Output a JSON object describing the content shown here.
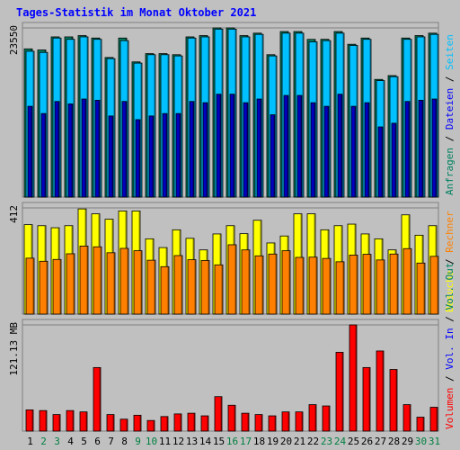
{
  "chart_data": {
    "type": "bar",
    "title": "Tages-Statistik im Monat Oktober 2021",
    "colors": {
      "anfragen": "#008060",
      "dateien": "#00c0ff",
      "seiten": "#0000c0",
      "besuche": "#ffff00",
      "rechner": "#ff8000",
      "volumen": "#ff0000",
      "weekday_label": "#000000",
      "weekend_label": "#008040"
    },
    "categories": [
      "1",
      "2",
      "3",
      "4",
      "5",
      "6",
      "7",
      "8",
      "9",
      "10",
      "11",
      "12",
      "13",
      "14",
      "15",
      "16",
      "17",
      "18",
      "19",
      "20",
      "21",
      "22",
      "23",
      "24",
      "25",
      "26",
      "27",
      "28",
      "29",
      "30",
      "31"
    ],
    "weekend_days": [
      "2",
      "3",
      "9",
      "10",
      "16",
      "17",
      "23",
      "24",
      "30",
      "31"
    ],
    "panels": [
      {
        "id": "requests",
        "ytick_label": "23550",
        "ymax": 23550,
        "legend": [
          {
            "text": "Anfragen",
            "color": "#008060"
          },
          {
            "text": "Dateien",
            "color": "#0000ff"
          },
          {
            "text": "Seiten",
            "color": "#00c0ff"
          }
        ],
        "series": [
          {
            "name": "Anfragen",
            "color": "#008060",
            "values": [
              20630,
              20480,
              22300,
              22300,
              22480,
              22140,
              19430,
              22140,
              18820,
              19970,
              19970,
              19820,
              22300,
              22480,
              23550,
              23550,
              22480,
              22820,
              19820,
              23040,
              23040,
              21950,
              21960,
              23040,
              21270,
              22140,
              16380,
              16910,
              22140,
              22480,
              22820
            ]
          },
          {
            "name": "Dateien",
            "color": "#00c0ff",
            "values": [
              20300,
              20140,
              22140,
              21960,
              22300,
              21960,
              19280,
              21780,
              18650,
              19820,
              19820,
              19650,
              22140,
              22300,
              23380,
              23380,
              22300,
              22650,
              19650,
              22820,
              22820,
              21610,
              21780,
              22820,
              21110,
              21960,
              16210,
              16760,
              21960,
              22300,
              22650
            ]
          },
          {
            "name": "Seiten",
            "color": "#0000c0",
            "values": [
              12640,
              11630,
              13310,
              12970,
              13650,
              13480,
              11290,
              13310,
              10780,
              11290,
              11630,
              11630,
              13310,
              13140,
              14320,
              14320,
              13140,
              13650,
              11460,
              14150,
              14150,
              13140,
              12640,
              14320,
              12640,
              13140,
              9770,
              10280,
              13310,
              13480,
              13650
            ]
          }
        ]
      },
      {
        "id": "visits",
        "ytick_label": "412",
        "ymax": 412,
        "legend": [
          {
            "text": "Besuche",
            "color": "#ffff00"
          },
          {
            "text": "Rechner",
            "color": "#ff8000"
          }
        ],
        "series": [
          {
            "name": "Besuche",
            "color": "#ffff00",
            "values": [
              347,
              343,
              335,
              343,
              408,
              389,
              368,
              400,
              400,
              292,
              258,
              327,
              294,
              249,
              311,
              343,
              312,
              364,
              276,
              303,
              389,
              389,
              327,
              343,
              349,
              311,
              292,
              249,
              385,
              306,
              343
            ]
          },
          {
            "name": "Rechner",
            "color": "#ff8000",
            "values": [
              217,
              205,
              212,
              234,
              264,
              261,
              238,
              255,
              246,
              209,
              184,
              227,
              211,
              208,
              191,
              269,
              249,
              226,
              233,
              246,
              220,
              221,
              216,
              203,
              229,
              232,
              210,
              233,
              254,
              198,
              224
            ]
          }
        ]
      },
      {
        "id": "volume",
        "ytick_label": "121.13 MB",
        "ymax": 121.13,
        "legend": [
          {
            "text": "Volumen",
            "color": "#ff0000"
          },
          {
            "text": "Vol. In",
            "color": "#0000ff"
          },
          {
            "text": "Vol. Out",
            "color": "#008060"
          }
        ],
        "series": [
          {
            "name": "Volumen",
            "color": "#ff0000",
            "values": [
              24.2,
              23.4,
              18.9,
              23.4,
              21.9,
              72.5,
              18.9,
              13.6,
              18.1,
              12.1,
              16.6,
              19.6,
              20.4,
              17.4,
              39.3,
              29.5,
              20.4,
              18.9,
              17.4,
              21.9,
              21.9,
              30.2,
              28.7,
              89.9,
              121.13,
              72.5,
              91.4,
              70.3,
              30.2,
              15.9,
              27.2
            ]
          }
        ]
      }
    ]
  }
}
